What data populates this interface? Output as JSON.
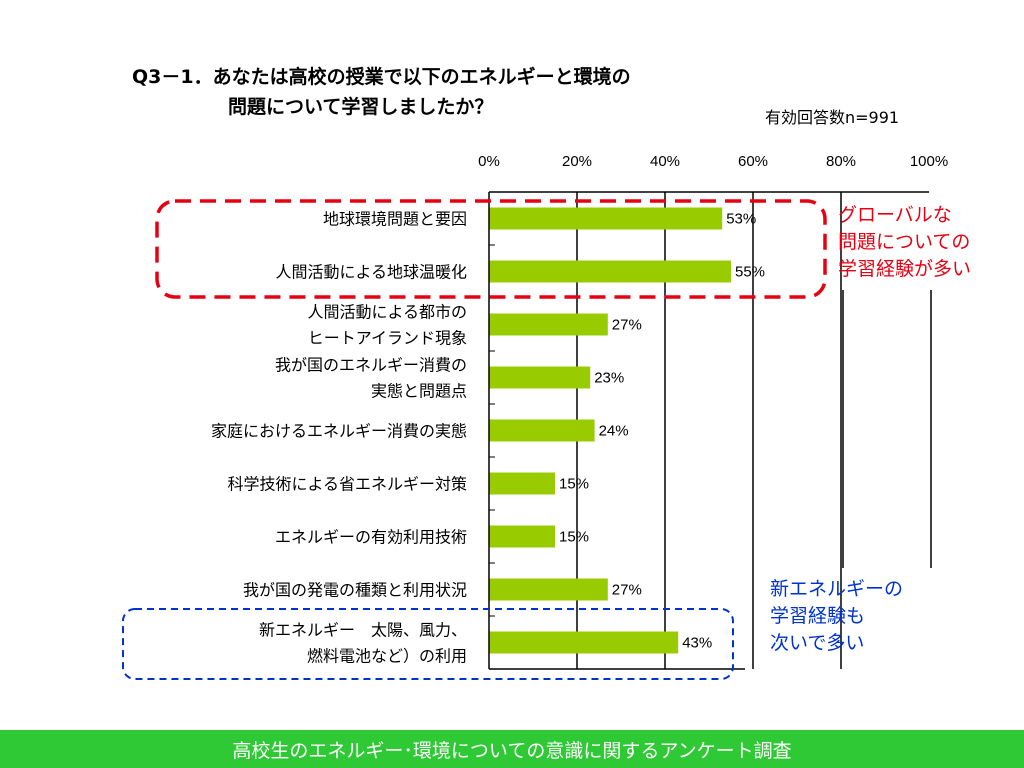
{
  "header": {
    "title_line1": "Q3－1．あなたは高校の授業で以下のエネルギーと環境の",
    "title_line2": "問題について学習しましたか？",
    "respondents": "有効回答数n=991"
  },
  "chart_data": {
    "type": "bar",
    "orientation": "horizontal",
    "categories": [
      "地球環境問題と要因",
      "人間活動による地球温暖化",
      "人間活動による都市の\nヒートアイランド現象",
      "我が国のエネルギー消費の\n実態と問題点",
      "家庭におけるエネルギー消費の実態",
      "科学技術による省エネルギー対策",
      "エネルギーの有効利用技術",
      "我が国の発電の種類と利用状況",
      "新エネルギー　太陽、風力、\n燃料電池など）の利用"
    ],
    "values": [
      53,
      55,
      27,
      23,
      24,
      15,
      15,
      27,
      43
    ],
    "data_labels": [
      "53%",
      "55%",
      "27%",
      "23%",
      "24%",
      "15%",
      "15%",
      "27%",
      "43%"
    ],
    "xlim": [
      0,
      100
    ],
    "x_ticks": [
      "0%",
      "20%",
      "40%",
      "60%",
      "80%",
      "100%"
    ],
    "grid": true,
    "bar_color": "#99cc00"
  },
  "annotations": {
    "red": {
      "text": "グローバルな\n問題についての\n学習経験が多い",
      "color": "#e60012"
    },
    "blue": {
      "text": "新エネルギーの\n学習経験も\n次いで多い",
      "color": "#0033cc"
    }
  },
  "footer": {
    "text": "高校生のエネルギー･環境についての意識に関するアンケート調査",
    "bg_color": "#2ec935"
  }
}
